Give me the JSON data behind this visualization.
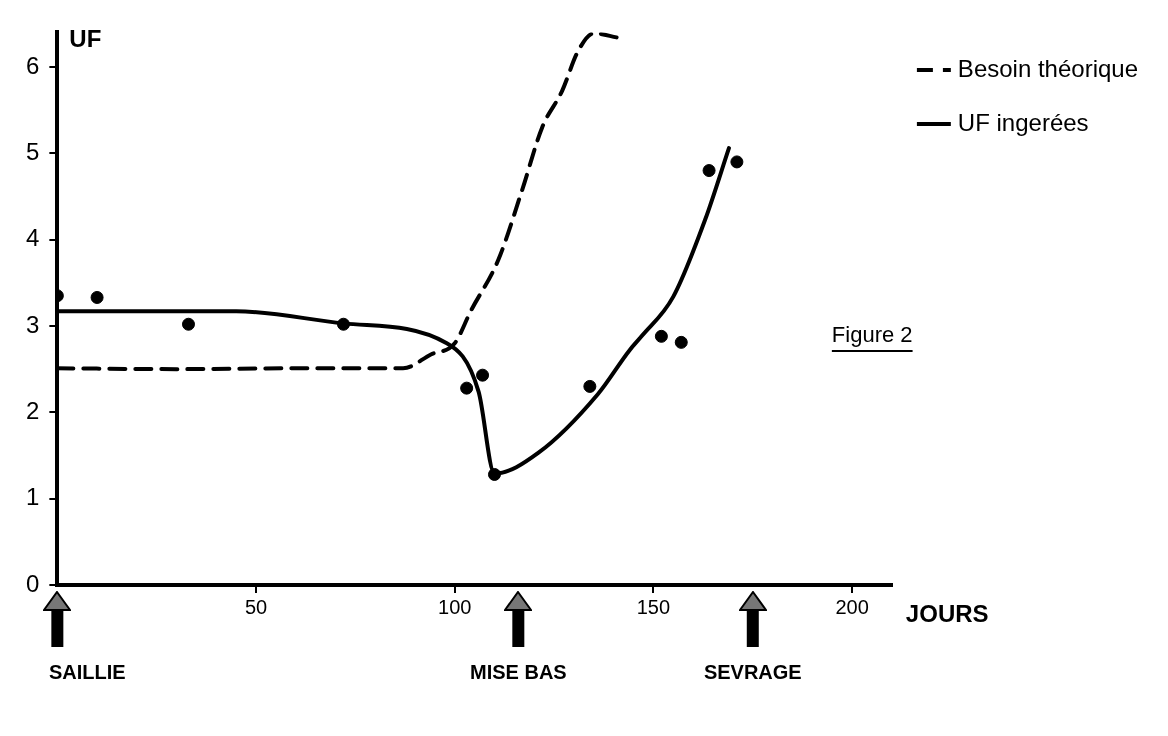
{
  "chart_data": {
    "type": "line",
    "ylabel": "UF",
    "xlabel": "JOURS",
    "xlim": [
      0,
      210
    ],
    "xticks": [
      50,
      100,
      150,
      200
    ],
    "ylim": [
      0,
      6.4
    ],
    "yticks": [
      0,
      1,
      2,
      3,
      4,
      5,
      6
    ],
    "grid": false,
    "legend": "top right",
    "series": [
      {
        "name": "Besoin théorique",
        "type": "line",
        "line_style": "dashed",
        "marker": "none",
        "color": "#000000",
        "x": [
          0,
          30,
          60,
          87,
          94,
          100,
          104,
          111,
          117,
          122,
          127,
          131,
          135,
          141
        ],
        "values": [
          2.51,
          2.5,
          2.51,
          2.51,
          2.67,
          2.8,
          3.17,
          3.77,
          4.58,
          5.3,
          5.72,
          6.18,
          6.39,
          6.34
        ]
      },
      {
        "name": "UF ingerées",
        "type": "line",
        "line_style": "solid",
        "marker": "none",
        "color": "#000000",
        "x": [
          0,
          45,
          72,
          98,
          106,
          110,
          121,
          136,
          144,
          147,
          155,
          163,
          169
        ],
        "values": [
          3.17,
          3.17,
          3.03,
          2.8,
          2.24,
          1.29,
          1.53,
          2.21,
          2.72,
          2.88,
          3.34,
          4.23,
          5.06
        ]
      },
      {
        "type": "scatter",
        "marker": "circle",
        "color": "#000000",
        "x": [
          0,
          10,
          33,
          72,
          103,
          107,
          110,
          134,
          152,
          157,
          164,
          171
        ],
        "values": [
          3.35,
          3.33,
          3.02,
          3.02,
          2.28,
          2.43,
          1.28,
          2.3,
          2.88,
          2.81,
          4.8,
          4.9
        ]
      }
    ],
    "ref_lines": [
      {
        "axis": "x",
        "value": 0,
        "label": "SAILLIE"
      },
      {
        "axis": "x",
        "value": 116,
        "label": "MISE BAS"
      },
      {
        "axis": "x",
        "value": 175,
        "label": "SEVRAGE"
      }
    ],
    "annotations": [
      "Figure 2"
    ]
  }
}
